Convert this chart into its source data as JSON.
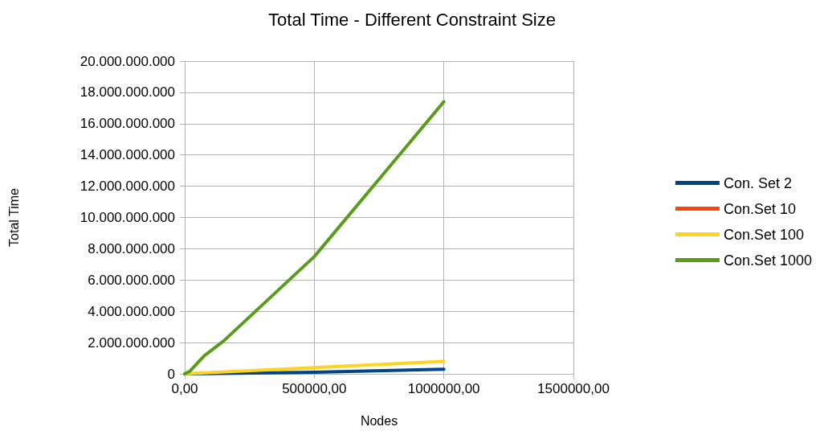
{
  "chart_data": {
    "type": "line",
    "title": "Total Time - Different Constraint Size",
    "xlabel": "Nodes",
    "ylabel": "Total Time",
    "xlim": [
      0,
      1500000
    ],
    "xticks": [
      {
        "value": 0,
        "label": "0,00"
      },
      {
        "value": 500000,
        "label": "500000,00"
      },
      {
        "value": 1000000,
        "label": "1000000,00"
      },
      {
        "value": 1500000,
        "label": "1500000,00"
      }
    ],
    "ylim": [
      0,
      20000000000
    ],
    "yticks": [
      {
        "value": 0,
        "label": "0"
      },
      {
        "value": 2000000000,
        "label": "2.000.000.000"
      },
      {
        "value": 4000000000,
        "label": "4.000.000.000"
      },
      {
        "value": 6000000000,
        "label": "6.000.000.000"
      },
      {
        "value": 8000000000,
        "label": "8.000.000.000"
      },
      {
        "value": 10000000000,
        "label": "10.000.000.000"
      },
      {
        "value": 12000000000,
        "label": "12.000.000.000"
      },
      {
        "value": 14000000000,
        "label": "14.000.000.000"
      },
      {
        "value": 16000000000,
        "label": "16.000.000.000"
      },
      {
        "value": 18000000000,
        "label": "18.000.000.000"
      },
      {
        "value": 20000000000,
        "label": "20.000.000.000"
      }
    ],
    "grid": true,
    "legend": "right",
    "marker": "none",
    "line_style": "solid",
    "series": [
      {
        "name": "Con. Set 2",
        "color": "#004586",
        "x": [
          0,
          500000,
          1000000
        ],
        "values": [
          0,
          100000000,
          300000000
        ]
      },
      {
        "name": "Con.Set 10",
        "color": "#ff420e"
      },
      {
        "name": "Con.Set 100",
        "color": "#ffd320",
        "x": [
          0,
          500000,
          1000000
        ],
        "values": [
          0,
          400000000,
          800000000
        ]
      },
      {
        "name": "Con.Set 1000",
        "color": "#579d1c",
        "x": [
          0,
          20000,
          75000,
          150000,
          500000,
          1000000
        ],
        "values": [
          0,
          170000000,
          1150000000,
          2100000000,
          7500000000,
          17400000000
        ]
      }
    ]
  }
}
